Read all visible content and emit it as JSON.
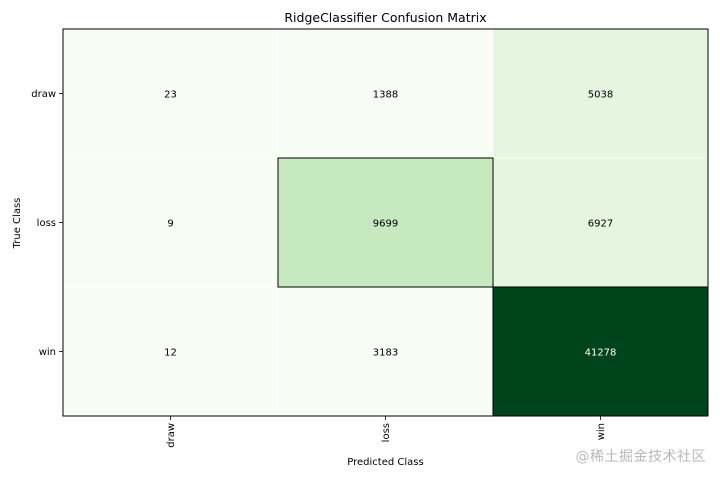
{
  "chart_data": {
    "type": "heatmap",
    "title": "RidgeClassifier Confusion Matrix",
    "xlabel": "Predicted Class",
    "ylabel": "True Class",
    "x_categories": [
      "draw",
      "loss",
      "win"
    ],
    "y_categories": [
      "draw",
      "loss",
      "win"
    ],
    "values": [
      [
        23,
        1388,
        5038
      ],
      [
        9,
        9699,
        6927
      ],
      [
        12,
        3183,
        41278
      ]
    ],
    "colormap": "Greens",
    "cell_colors": [
      [
        "#f7fcf5",
        "#f7fcf5",
        "#e5f5e0"
      ],
      [
        "#f7fcf5",
        "#c7e9c0",
        "#e5f5e0"
      ],
      [
        "#f7fcf5",
        "#f7fcf5",
        "#00441b"
      ]
    ],
    "highlighted_cells": [
      [
        1,
        1
      ],
      [
        2,
        2
      ]
    ],
    "grid": false,
    "legend": "none"
  },
  "watermark": "@稀土掘金技术社区"
}
